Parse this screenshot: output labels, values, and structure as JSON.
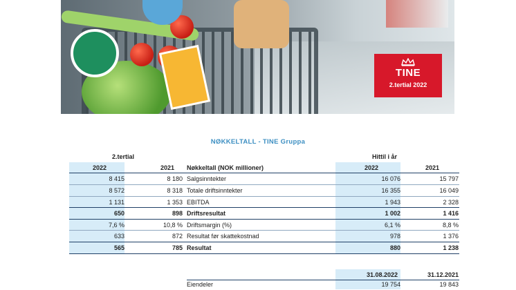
{
  "brand": {
    "name": "TINE",
    "period": "2.tertial 2022"
  },
  "colors": {
    "brand_red": "#d7182a",
    "title_blue": "#3d8fc2",
    "shade": "#d7ecf8",
    "rule": "#1f3f66"
  },
  "report": {
    "title": "NØKKELTALL - TINE Gruppa"
  },
  "table": {
    "group_left": "2.tertial",
    "group_right": "Hittil i år",
    "headers": {
      "c1": "2022",
      "c2": "2021",
      "label": "Nøkkeltall (NOK millioner)",
      "c3": "2022",
      "c4": "2021"
    },
    "rows": [
      {
        "c1": "8 415",
        "c2": "8 180",
        "label": "Salgsinntekter",
        "c3": "16 076",
        "c4": "15 797",
        "bold": false
      },
      {
        "c1": "8 572",
        "c2": "8 318",
        "label": "Totale driftsinntekter",
        "c3": "16 355",
        "c4": "16 049",
        "bold": false
      },
      {
        "c1": "1 131",
        "c2": "1 353",
        "label": "EBITDA",
        "c3": "1 943",
        "c4": "2 328",
        "bold": false
      },
      {
        "c1": "650",
        "c2": "898",
        "label": "Driftsresultat",
        "c3": "1 002",
        "c4": "1 416",
        "bold": true
      },
      {
        "c1": "7,6 %",
        "c2": "10,8 %",
        "label": "Driftsmargin (%)",
        "c3": "6,1 %",
        "c4": "8,8 %",
        "bold": false
      },
      {
        "c1": "633",
        "c2": "872",
        "label": "Resultat før skattekostnad",
        "c3": "978",
        "c4": "1 376",
        "bold": false
      },
      {
        "c1": "565",
        "c2": "785",
        "label": "Resultat",
        "c3": "880",
        "c4": "1 238",
        "bold": true
      }
    ]
  },
  "balance": {
    "headers": {
      "c3": "31.08.2022",
      "c4": "31.12.2021"
    },
    "rows": [
      {
        "label": "Eiendeler",
        "c3": "19 754",
        "c4": "19 843"
      }
    ]
  }
}
